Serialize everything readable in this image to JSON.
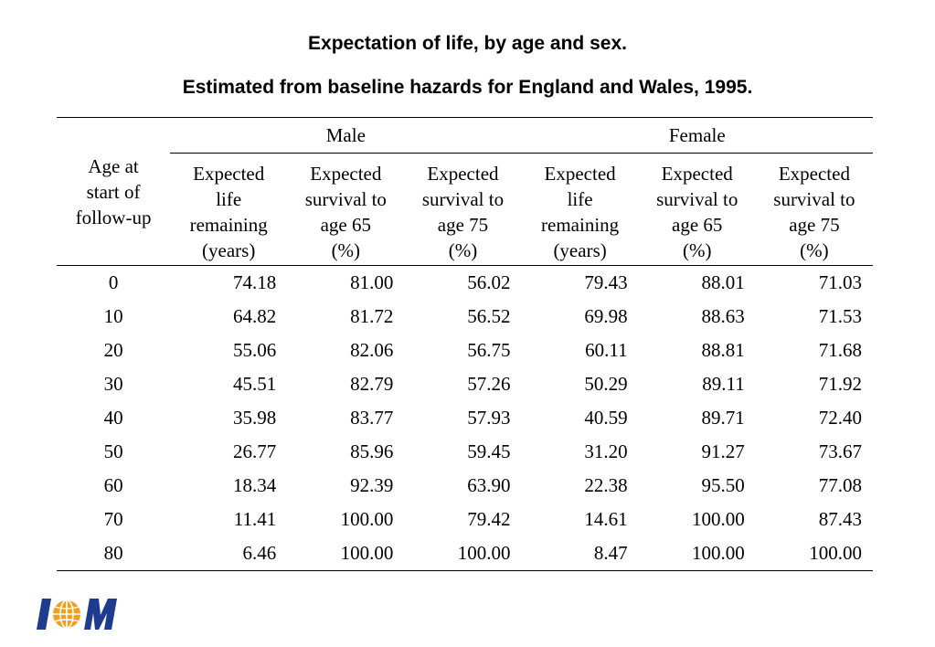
{
  "title": "Expectation of life, by age and sex.",
  "subtitle": "Estimated from baseline hazards for England and Wales, 1995.",
  "table": {
    "age_header": [
      "Age at",
      "start of",
      "follow-up"
    ],
    "groups": [
      "Male",
      "Female"
    ],
    "columns": [
      [
        "Expected",
        "life",
        "remaining",
        "(years)"
      ],
      [
        "Expected",
        "survival to",
        "age 65",
        "(%)"
      ],
      [
        "Expected",
        "survival to",
        "age 75",
        "(%)"
      ],
      [
        "Expected",
        "life",
        "remaining",
        "(years)"
      ],
      [
        "Expected",
        "survival to",
        "age 65",
        "(%)"
      ],
      [
        "Expected",
        "survival to",
        "age 75",
        "(%)"
      ]
    ],
    "rows": [
      [
        "0",
        "74.18",
        "81.00",
        "56.02",
        "79.43",
        "88.01",
        "71.03"
      ],
      [
        "10",
        "64.82",
        "81.72",
        "56.52",
        "69.98",
        "88.63",
        "71.53"
      ],
      [
        "20",
        "55.06",
        "82.06",
        "56.75",
        "60.11",
        "88.81",
        "71.68"
      ],
      [
        "30",
        "45.51",
        "82.79",
        "57.26",
        "50.29",
        "89.11",
        "71.92"
      ],
      [
        "40",
        "35.98",
        "83.77",
        "57.93",
        "40.59",
        "89.71",
        "72.40"
      ],
      [
        "50",
        "26.77",
        "85.96",
        "59.45",
        "31.20",
        "91.27",
        "73.67"
      ],
      [
        "60",
        "18.34",
        "92.39",
        "63.90",
        "22.38",
        "95.50",
        "77.08"
      ],
      [
        "70",
        "11.41",
        "100.00",
        "79.42",
        "14.61",
        "100.00",
        "87.43"
      ],
      [
        "80",
        "6.46",
        "100.00",
        "100.00",
        "8.47",
        "100.00",
        "100.00"
      ]
    ]
  },
  "logo": {
    "text": "IOM",
    "colors": {
      "letters": "#1f3b8f",
      "globe": "#f0a020"
    }
  }
}
